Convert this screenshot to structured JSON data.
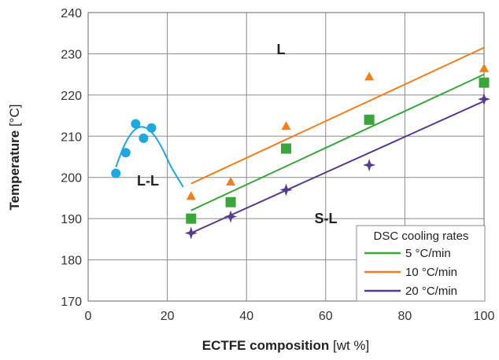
{
  "chart_data": {
    "type": "scatter",
    "xlabel_bold": "ECTFE composition",
    "xlabel_unit": "[wt %]",
    "ylabel_bold": "Temperature",
    "ylabel_unit": "[°C]",
    "xlim": [
      0,
      100
    ],
    "ylim": [
      170,
      240
    ],
    "xticks": [
      0,
      20,
      40,
      60,
      80,
      100
    ],
    "yticks": [
      170,
      180,
      190,
      200,
      210,
      220,
      230,
      240
    ],
    "grid": true,
    "legend": {
      "title": "DSC cooling rates",
      "position": "bottom-right",
      "entries": [
        {
          "label": "5 °C/min",
          "color": "#3aa53a"
        },
        {
          "label": "10 °C/min",
          "color": "#f07f1e"
        },
        {
          "label": "20 °C/min",
          "color": "#553a8f"
        }
      ]
    },
    "region_labels": [
      "L",
      "L-L",
      "S-L"
    ],
    "series": [
      {
        "key": "ll",
        "marker": "circle",
        "color": "#1ca8e0",
        "points": [
          [
            7,
            201
          ],
          [
            9.5,
            206
          ],
          [
            12,
            213
          ],
          [
            14,
            209.5
          ],
          [
            16,
            212
          ]
        ],
        "curve": [
          [
            7,
            202.5
          ],
          [
            9,
            207.5
          ],
          [
            11,
            210.8
          ],
          [
            13,
            212.2
          ],
          [
            15,
            211.8
          ],
          [
            17,
            209.8
          ],
          [
            19,
            206.5
          ],
          [
            21,
            202.5
          ],
          [
            24,
            197.7
          ]
        ]
      },
      {
        "key": "r10",
        "marker": "triangle",
        "color": "#f07f1e",
        "points": [
          [
            26,
            195.5
          ],
          [
            36,
            199
          ],
          [
            50,
            212.5
          ],
          [
            71,
            224.5
          ],
          [
            100,
            226.5
          ]
        ],
        "fit": [
          [
            26,
            198.5
          ],
          [
            100,
            231.5
          ]
        ]
      },
      {
        "key": "r5",
        "marker": "square",
        "color": "#3aa53a",
        "points": [
          [
            26,
            190
          ],
          [
            36,
            194
          ],
          [
            50,
            207
          ],
          [
            71,
            214
          ],
          [
            100,
            223
          ]
        ],
        "fit": [
          [
            26,
            192
          ],
          [
            100,
            225
          ]
        ]
      },
      {
        "key": "r20",
        "marker": "star",
        "color": "#553a8f",
        "points": [
          [
            26,
            186.5
          ],
          [
            36,
            190.5
          ],
          [
            50,
            197
          ],
          [
            71,
            203
          ],
          [
            100,
            219
          ]
        ],
        "fit": [
          [
            26,
            186.5
          ],
          [
            100,
            218.5
          ]
        ]
      }
    ]
  }
}
